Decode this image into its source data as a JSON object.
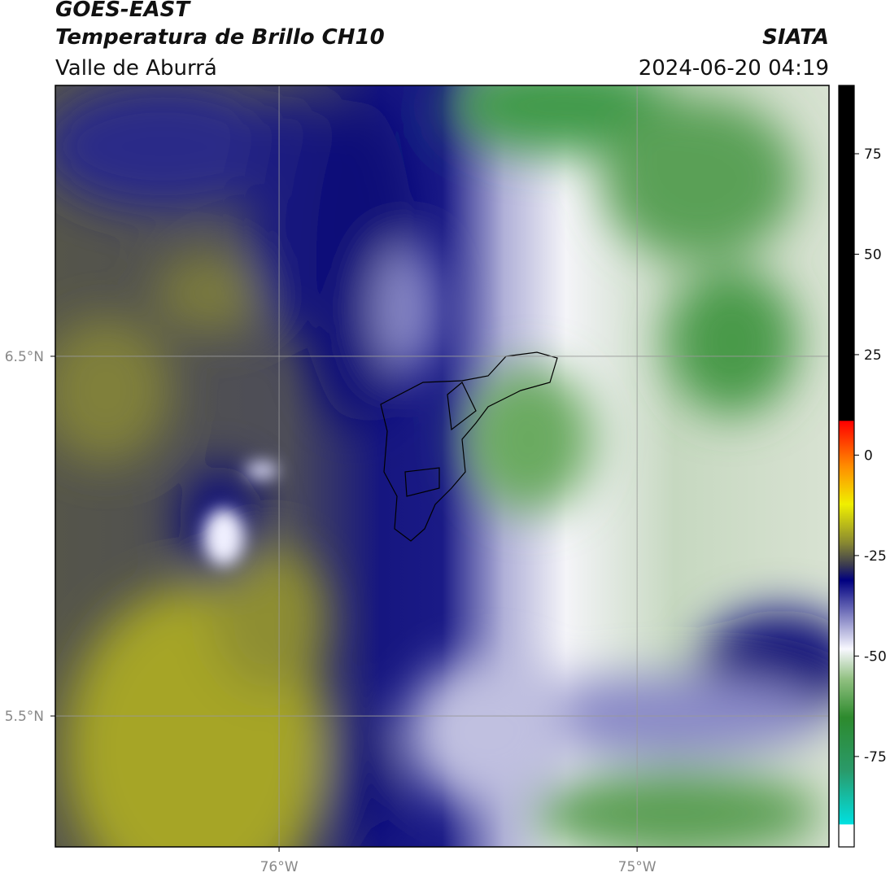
{
  "header": {
    "title": "GOES-EAST",
    "subtitle": "Temperatura de Brillo CH10",
    "region": "Valle de Aburrá",
    "source": "SIATA",
    "datetime": "2024-06-20 04:19"
  },
  "map": {
    "xlim": [
      -76.625,
      -74.464
    ],
    "ylim": [
      5.136,
      7.253
    ],
    "xticks": [
      {
        "value": -76,
        "label": "76°W"
      },
      {
        "value": -75,
        "label": "75°W"
      }
    ],
    "yticks": [
      {
        "value": 6.5,
        "label": "6.5°N"
      },
      {
        "value": 5.5,
        "label": "5.5°N"
      }
    ],
    "grid": true
  },
  "colorbar": {
    "lim": [
      -97.5,
      92
    ],
    "ticks": [
      75,
      50,
      25,
      0,
      -25,
      -50,
      -75
    ]
  }
}
